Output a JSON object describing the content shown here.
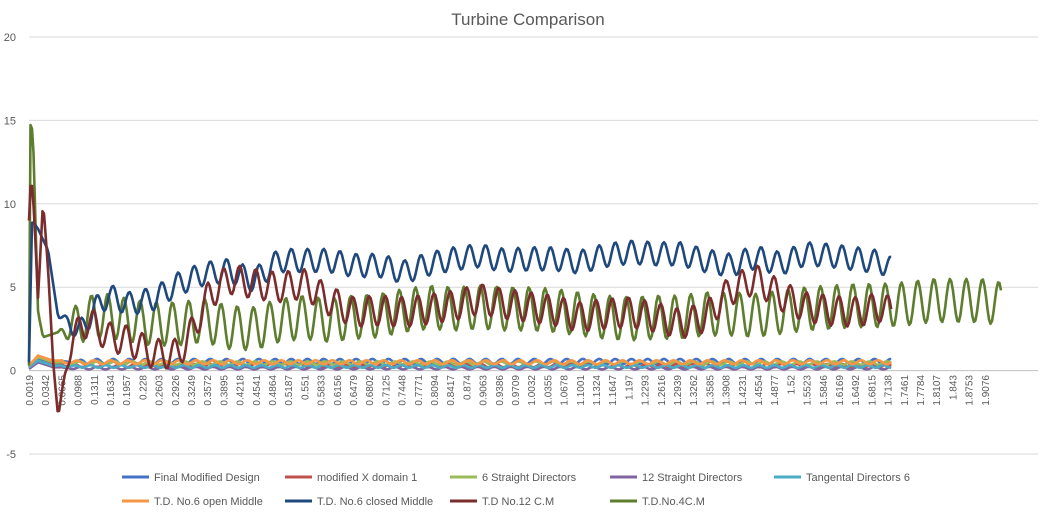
{
  "chart_data": {
    "type": "line",
    "title": "Turbine Comparison",
    "xlabel": "",
    "ylabel": "",
    "ylim": [
      -5,
      20
    ],
    "yticks": [
      -5,
      0,
      5,
      10,
      15,
      20
    ],
    "grid": "horizontal",
    "legend_position": "bottom",
    "x_tick_labels": [
      "0.0019",
      "0.0342",
      "0.0665",
      "0.0988",
      "0.1311",
      "0.1634",
      "0.1957",
      "0.228",
      "0.2603",
      "0.2926",
      "0.3249",
      "0.3572",
      "0.3895",
      "0.4218",
      "0.4541",
      "0.4864",
      "0.5187",
      "0.551",
      "0.5833",
      "0.6156",
      "0.6479",
      "0.6802",
      "0.7125",
      "0.7448",
      "0.7771",
      "0.8094",
      "0.8417",
      "0.874",
      "0.9063",
      "0.9386",
      "0.9709",
      "1.0032",
      "1.0355",
      "1.0678",
      "1.1001",
      "1.1324",
      "1.1647",
      "1.197",
      "1.2293",
      "1.2616",
      "1.2939",
      "1.3262",
      "1.3585",
      "1.3908",
      "1.4231",
      "1.4554",
      "1.4877",
      "1.52",
      "1.5523",
      "1.5846",
      "1.6169",
      "1.6492",
      "1.6815",
      "1.7138",
      "1.7461",
      "1.7784",
      "1.8107",
      "1.843",
      "1.8753",
      "1.9076"
    ],
    "x_min": 0.0019,
    "x_max": 1.94,
    "series": [
      {
        "name": "Final Modified Design",
        "color": "#4472C4",
        "x_end": 1.722,
        "base": 0.55,
        "amp": 0.15,
        "period": 0.0323,
        "phase": 0.0,
        "anchors": [
          [
            0.0019,
            0.3
          ],
          [
            0.02,
            0.7
          ],
          [
            0.05,
            0.5
          ],
          [
            0.1,
            0.5
          ]
        ]
      },
      {
        "name": "modified X domain 1",
        "color": "#C0504D",
        "x_end": 1.722,
        "base": 0.3,
        "amp": 0.1,
        "period": 0.03,
        "phase": 1.0,
        "anchors": [
          [
            0.0019,
            0.2
          ],
          [
            0.02,
            0.9
          ],
          [
            0.05,
            0.4
          ]
        ]
      },
      {
        "name": "6 Straight Directors",
        "color": "#9BBB59",
        "x_end": 1.722,
        "base": 0.45,
        "amp": 0.1,
        "period": 0.035,
        "phase": 2.0,
        "anchors": [
          [
            0.0019,
            0.3
          ],
          [
            0.02,
            0.8
          ],
          [
            0.05,
            0.5
          ]
        ]
      },
      {
        "name": "12 Straight Directors",
        "color": "#8064A2",
        "x_end": 1.722,
        "base": 0.15,
        "amp": 0.08,
        "period": 0.033,
        "phase": 0.5,
        "anchors": [
          [
            0.0019,
            0.1
          ],
          [
            0.02,
            0.5
          ],
          [
            0.05,
            0.2
          ]
        ]
      },
      {
        "name": "Tangental Directors 6",
        "color": "#4BACC6",
        "x_end": 1.722,
        "base": 0.25,
        "amp": 0.08,
        "period": 0.031,
        "phase": 1.5,
        "anchors": [
          [
            0.0019,
            0.2
          ],
          [
            0.02,
            0.6
          ],
          [
            0.05,
            0.3
          ]
        ]
      },
      {
        "name": "T.D. No.6 open Middle",
        "color": "#F79646",
        "x_end": 1.722,
        "base": 0.5,
        "amp": 0.12,
        "period": 0.034,
        "phase": 2.5,
        "anchors": [
          [
            0.0019,
            0.3
          ],
          [
            0.02,
            0.9
          ],
          [
            0.05,
            0.6
          ]
        ]
      },
      {
        "name": "T.D. No.6 closed Middle",
        "color": "#1F497D",
        "x_end": 1.722,
        "amp": 0.7,
        "period": 0.0323,
        "phase": 0.0,
        "anchors": [
          [
            0.0019,
            0.5
          ],
          [
            0.008,
            9.0
          ],
          [
            0.02,
            8.5
          ],
          [
            0.04,
            7.2
          ],
          [
            0.06,
            3.2
          ],
          [
            0.08,
            3.0
          ],
          [
            0.1,
            2.2
          ],
          [
            0.13,
            3.6
          ],
          [
            0.16,
            4.5
          ],
          [
            0.2,
            4.0
          ],
          [
            0.25,
            4.3
          ],
          [
            0.3,
            5.2
          ],
          [
            0.35,
            5.8
          ],
          [
            0.4,
            6.0
          ],
          [
            0.45,
            5.4
          ],
          [
            0.5,
            6.6
          ],
          [
            0.55,
            6.6
          ],
          [
            0.6,
            6.6
          ],
          [
            0.65,
            6.3
          ],
          [
            0.7,
            6.3
          ],
          [
            0.75,
            5.9
          ],
          [
            0.8,
            6.4
          ],
          [
            0.85,
            6.7
          ],
          [
            0.9,
            6.9
          ],
          [
            0.95,
            6.6
          ],
          [
            1.0,
            6.7
          ],
          [
            1.05,
            6.7
          ],
          [
            1.1,
            6.5
          ],
          [
            1.15,
            6.9
          ],
          [
            1.2,
            7.1
          ],
          [
            1.25,
            7.0
          ],
          [
            1.3,
            7.0
          ],
          [
            1.35,
            6.6
          ],
          [
            1.4,
            6.3
          ],
          [
            1.45,
            6.8
          ],
          [
            1.5,
            6.4
          ],
          [
            1.55,
            7.0
          ],
          [
            1.6,
            6.9
          ],
          [
            1.65,
            6.7
          ],
          [
            1.7,
            6.5
          ],
          [
            1.722,
            6.1
          ]
        ]
      },
      {
        "name": "T.D No.12 C.M",
        "color": "#7B2C2C",
        "x_end": 1.722,
        "amp": 0.9,
        "period": 0.0323,
        "phase": 1.2,
        "anchors": [
          [
            0.0019,
            9.0
          ],
          [
            0.006,
            11.8
          ],
          [
            0.012,
            9.5
          ],
          [
            0.02,
            4.3
          ],
          [
            0.03,
            10.2
          ],
          [
            0.04,
            6.0
          ],
          [
            0.05,
            0.5
          ],
          [
            0.06,
            -2.8
          ],
          [
            0.075,
            0.0
          ],
          [
            0.09,
            2.0
          ],
          [
            0.12,
            3.0
          ],
          [
            0.16,
            2.0
          ],
          [
            0.2,
            1.8
          ],
          [
            0.25,
            1.0
          ],
          [
            0.3,
            1.0
          ],
          [
            0.33,
            2.5
          ],
          [
            0.36,
            4.5
          ],
          [
            0.4,
            5.5
          ],
          [
            0.45,
            5.2
          ],
          [
            0.5,
            5.0
          ],
          [
            0.55,
            5.2
          ],
          [
            0.6,
            4.2
          ],
          [
            0.65,
            3.5
          ],
          [
            0.7,
            3.6
          ],
          [
            0.75,
            3.5
          ],
          [
            0.8,
            3.7
          ],
          [
            0.85,
            3.9
          ],
          [
            0.9,
            4.3
          ],
          [
            0.95,
            4.0
          ],
          [
            1.0,
            3.8
          ],
          [
            1.05,
            3.6
          ],
          [
            1.1,
            3.2
          ],
          [
            1.15,
            3.4
          ],
          [
            1.2,
            3.5
          ],
          [
            1.25,
            3.2
          ],
          [
            1.3,
            2.8
          ],
          [
            1.35,
            3.2
          ],
          [
            1.4,
            4.8
          ],
          [
            1.45,
            5.5
          ],
          [
            1.5,
            4.5
          ],
          [
            1.55,
            3.8
          ],
          [
            1.6,
            3.6
          ],
          [
            1.65,
            3.5
          ],
          [
            1.7,
            3.8
          ],
          [
            1.722,
            3.5
          ]
        ]
      },
      {
        "name": "T.D.No.4C.M",
        "color": "#5E7D2E",
        "x_end": 1.94,
        "amp": 1.3,
        "period": 0.0323,
        "phase": 2.1,
        "anchors": [
          [
            0.0019,
            0.3
          ],
          [
            0.005,
            15.2
          ],
          [
            0.01,
            14.0
          ],
          [
            0.02,
            3.5
          ],
          [
            0.03,
            2.0
          ],
          [
            0.05,
            2.2
          ],
          [
            0.08,
            2.5
          ],
          [
            0.12,
            3.2
          ],
          [
            0.16,
            3.3
          ],
          [
            0.2,
            3.0
          ],
          [
            0.25,
            2.8
          ],
          [
            0.3,
            2.8
          ],
          [
            0.35,
            3.0
          ],
          [
            0.4,
            2.6
          ],
          [
            0.45,
            2.5
          ],
          [
            0.5,
            3.0
          ],
          [
            0.55,
            3.2
          ],
          [
            0.6,
            3.0
          ],
          [
            0.65,
            3.2
          ],
          [
            0.7,
            3.3
          ],
          [
            0.75,
            3.6
          ],
          [
            0.8,
            3.8
          ],
          [
            0.85,
            3.7
          ],
          [
            0.9,
            3.8
          ],
          [
            0.95,
            3.7
          ],
          [
            1.0,
            3.7
          ],
          [
            1.05,
            3.6
          ],
          [
            1.1,
            3.4
          ],
          [
            1.15,
            3.2
          ],
          [
            1.2,
            3.1
          ],
          [
            1.25,
            3.2
          ],
          [
            1.3,
            3.2
          ],
          [
            1.35,
            3.4
          ],
          [
            1.4,
            3.4
          ],
          [
            1.45,
            3.3
          ],
          [
            1.5,
            3.5
          ],
          [
            1.55,
            3.7
          ],
          [
            1.6,
            3.8
          ],
          [
            1.65,
            3.9
          ],
          [
            1.7,
            3.9
          ],
          [
            1.75,
            4.0
          ],
          [
            1.8,
            4.2
          ],
          [
            1.85,
            4.2
          ],
          [
            1.9,
            4.2
          ],
          [
            1.94,
            4.0
          ]
        ]
      }
    ]
  }
}
